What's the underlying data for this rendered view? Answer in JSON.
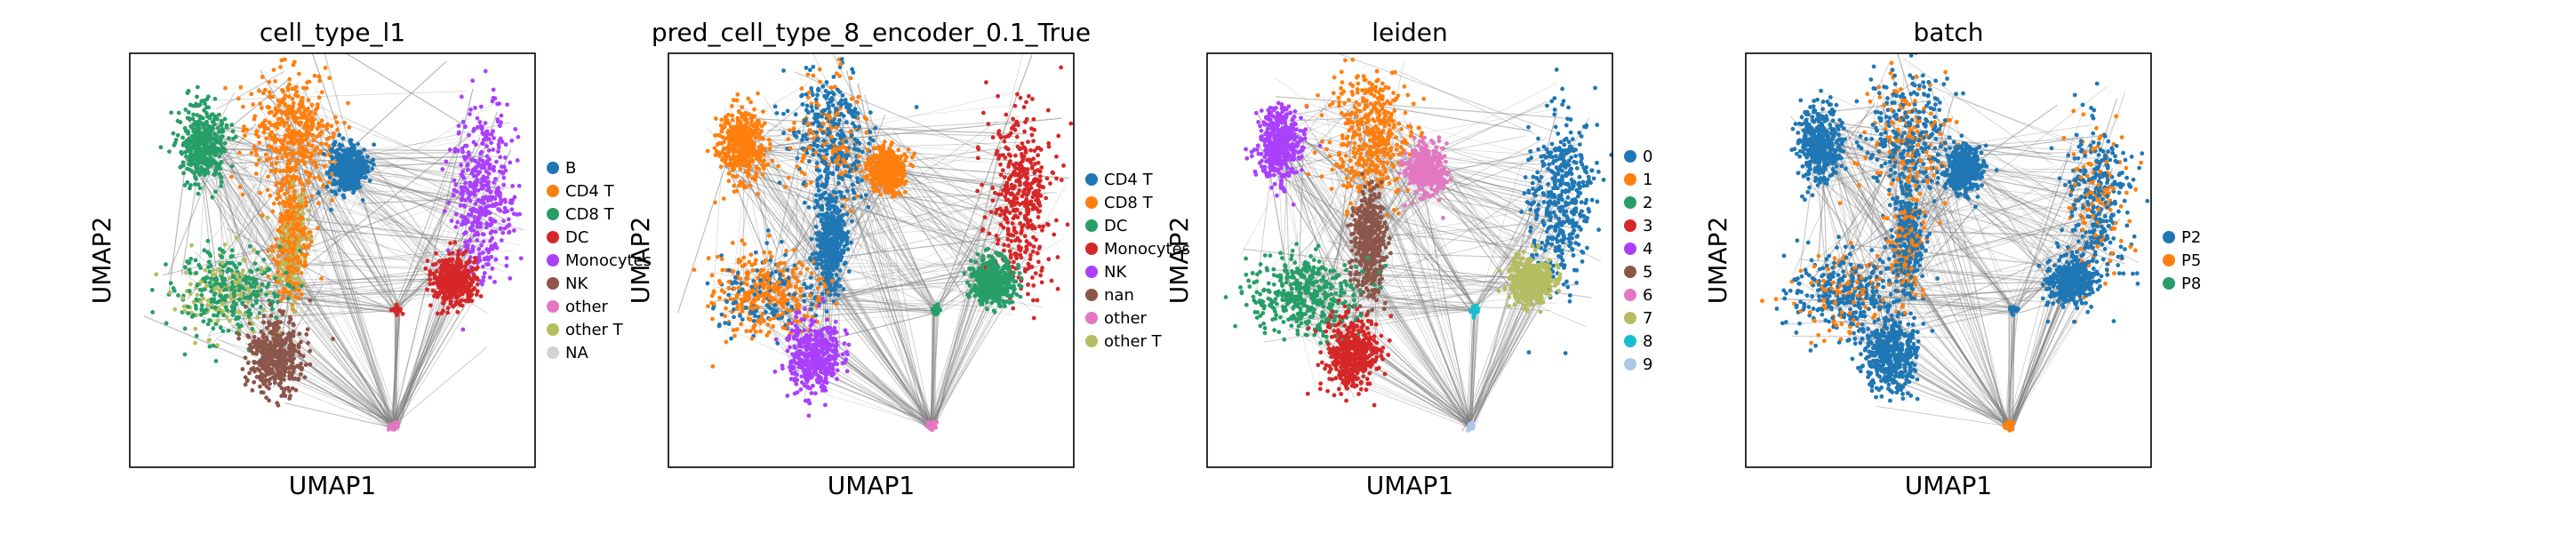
{
  "chart_data": [
    {
      "type": "scatter",
      "title": "cell_type_l1",
      "xlabel": "UMAP1",
      "ylabel": "UMAP2",
      "legend": [
        {
          "label": "B",
          "color": "#1f77b4"
        },
        {
          "label": "CD4 T",
          "color": "#ff7f0e"
        },
        {
          "label": "CD8 T",
          "color": "#279e68"
        },
        {
          "label": "DC",
          "color": "#d62728"
        },
        {
          "label": "Monocytes",
          "color": "#aa40fc"
        },
        {
          "label": "NK",
          "color": "#8c564b"
        },
        {
          "label": "other",
          "color": "#e377c2"
        },
        {
          "label": "other T",
          "color": "#b5bd61"
        },
        {
          "label": "NA",
          "color": "#d3d3d3"
        }
      ],
      "grid": false
    },
    {
      "type": "scatter",
      "title": "pred_cell_type_8_encoder_0.1_True",
      "xlabel": "UMAP1",
      "ylabel": "UMAP2",
      "legend": [
        {
          "label": "CD4 T",
          "color": "#1f77b4"
        },
        {
          "label": "CD8 T",
          "color": "#ff7f0e"
        },
        {
          "label": "DC",
          "color": "#279e68"
        },
        {
          "label": "Monocytes",
          "color": "#d62728"
        },
        {
          "label": "NK",
          "color": "#aa40fc"
        },
        {
          "label": "nan",
          "color": "#8c564b"
        },
        {
          "label": "other",
          "color": "#e377c2"
        },
        {
          "label": "other T",
          "color": "#b5bd61"
        }
      ],
      "grid": false
    },
    {
      "type": "scatter",
      "title": "leiden",
      "xlabel": "UMAP1",
      "ylabel": "UMAP2",
      "legend": [
        {
          "label": "0",
          "color": "#1f77b4"
        },
        {
          "label": "1",
          "color": "#ff7f0e"
        },
        {
          "label": "2",
          "color": "#279e68"
        },
        {
          "label": "3",
          "color": "#d62728"
        },
        {
          "label": "4",
          "color": "#aa40fc"
        },
        {
          "label": "5",
          "color": "#8c564b"
        },
        {
          "label": "6",
          "color": "#e377c2"
        },
        {
          "label": "7",
          "color": "#b5bd61"
        },
        {
          "label": "8",
          "color": "#17becf"
        },
        {
          "label": "9",
          "color": "#aec7e8"
        }
      ],
      "grid": false
    },
    {
      "type": "scatter",
      "title": "batch",
      "xlabel": "UMAP1",
      "ylabel": "UMAP2",
      "legend": [
        {
          "label": "P2",
          "color": "#1f77b4"
        },
        {
          "label": "P5",
          "color": "#ff7f0e"
        },
        {
          "label": "P8",
          "color": "#279e68"
        }
      ],
      "grid": false
    }
  ]
}
